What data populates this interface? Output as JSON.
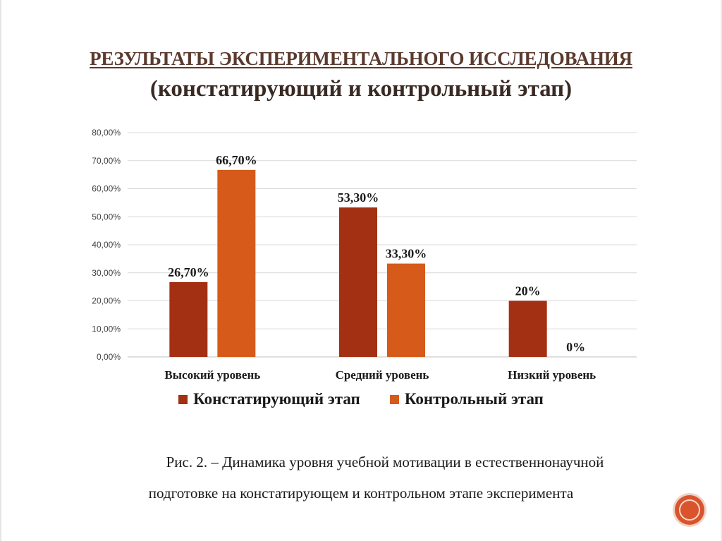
{
  "title": {
    "line1": "РЕЗУЛЬТАТЫ ЭКСПЕРИМЕНТАЛЬНОГО ИССЛЕДОВАНИЯ",
    "line2": "(констатирующий и контрольный этап)"
  },
  "chart_data": {
    "type": "bar",
    "categories": [
      "Высокий уровень",
      "Средний уровень",
      "Низкий уровень"
    ],
    "series": [
      {
        "name": "Констатирующий этап",
        "values": [
          26.7,
          53.3,
          20
        ],
        "labels": [
          "26,70%",
          "53,30%",
          "20%"
        ],
        "color": "#a33013"
      },
      {
        "name": "Контрольный этап",
        "values": [
          66.7,
          33.3,
          0
        ],
        "labels": [
          "66,70%",
          "33,30%",
          "0%"
        ],
        "color": "#d65a1a"
      }
    ],
    "ylim": [
      0,
      80
    ],
    "yticks": [
      "0,00%",
      "10,00%",
      "20,00%",
      "30,00%",
      "40,00%",
      "50,00%",
      "60,00%",
      "70,00%",
      "80,00%"
    ],
    "grid": true,
    "legend": "bottom"
  },
  "legend": {
    "item1": "Констатирующий этап",
    "item2": "Контрольный этап"
  },
  "caption": {
    "line1": "Рис. 2. – Динамика уровня учебной мотивации в естественнонаучной",
    "line2": "подготовке на констатирующем и контрольном этапе эксперимента"
  }
}
